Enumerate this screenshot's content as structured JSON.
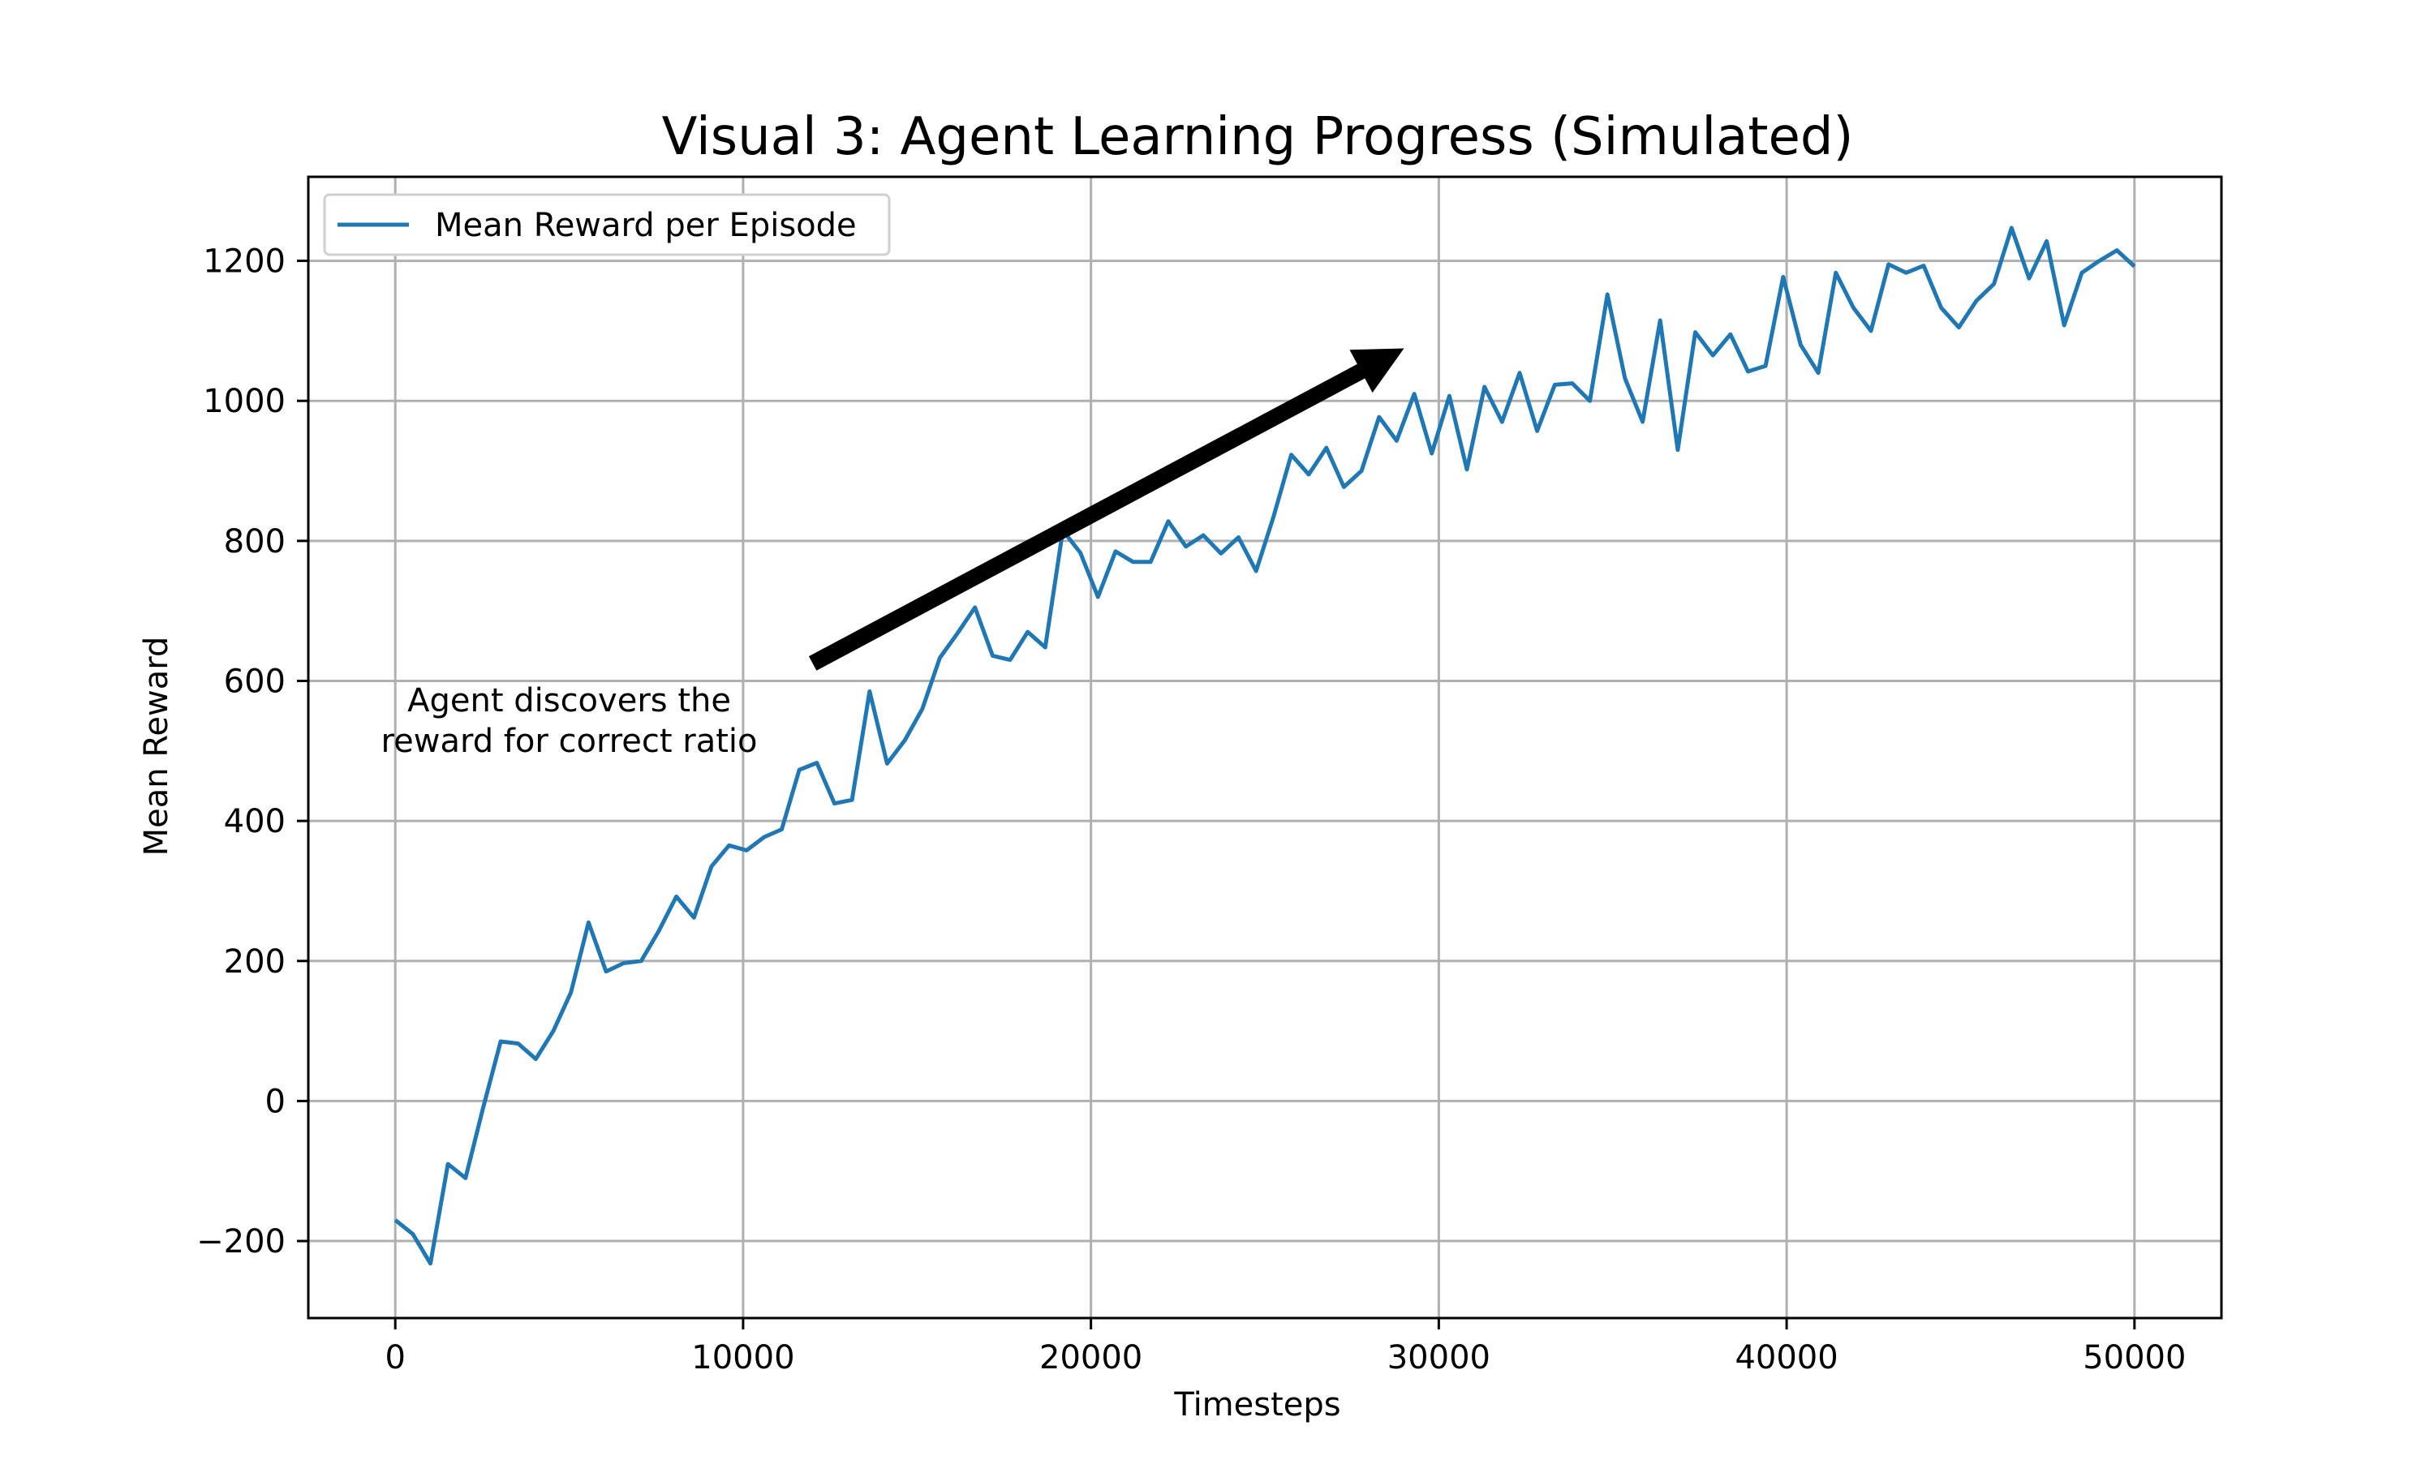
{
  "chart_data": {
    "type": "line",
    "title": "Visual 3: Agent Learning Progress (Simulated)",
    "xlabel": "Timesteps",
    "ylabel": "Mean Reward",
    "xlim": [
      -2500,
      52500
    ],
    "ylim": [
      -310,
      1320
    ],
    "xticks": [
      0,
      10000,
      20000,
      30000,
      40000,
      50000
    ],
    "yticks": [
      -200,
      0,
      200,
      400,
      600,
      800,
      1000,
      1200
    ],
    "grid": true,
    "legend_position": "top-left",
    "series": [
      {
        "name": "Mean Reward per Episode",
        "color": "#1f77b4",
        "x": [
          0,
          505,
          1010,
          1515,
          2020,
          2525,
          3030,
          3535,
          4040,
          4545,
          5051,
          5556,
          6061,
          6566,
          7071,
          7576,
          8081,
          8586,
          9091,
          9596,
          10101,
          10606,
          11111,
          11616,
          12121,
          12626,
          13131,
          13636,
          14141,
          14646,
          15152,
          15657,
          16162,
          16667,
          17172,
          17677,
          18182,
          18687,
          19192,
          19697,
          20202,
          20707,
          21212,
          21717,
          22222,
          22727,
          23232,
          23737,
          24242,
          24747,
          25253,
          25758,
          26263,
          26768,
          27273,
          27778,
          28283,
          28788,
          29293,
          29798,
          30303,
          30808,
          31313,
          31818,
          32323,
          32828,
          33333,
          33838,
          34343,
          34848,
          35354,
          35859,
          36364,
          36869,
          37374,
          37879,
          38384,
          38889,
          39394,
          39899,
          40404,
          40909,
          41414,
          41919,
          42424,
          42929,
          43434,
          43939,
          44444,
          44949,
          45455,
          45960,
          46465,
          46970,
          47475,
          47980,
          48485,
          48990,
          49495,
          50000
        ],
        "values": [
          -170,
          -190,
          -232,
          -90,
          -110,
          -10,
          85,
          82,
          60,
          100,
          155,
          255,
          185,
          197,
          200,
          243,
          292,
          262,
          335,
          365,
          358,
          377,
          388,
          473,
          483,
          425,
          430,
          585,
          482,
          515,
          560,
          633,
          668,
          705,
          636,
          630,
          670,
          648,
          815,
          783,
          720,
          785,
          770,
          770,
          828,
          792,
          808,
          782,
          805,
          757,
          835,
          923,
          895,
          933,
          877,
          900,
          977,
          943,
          1010,
          925,
          1007,
          902,
          1020,
          970,
          1040,
          957,
          1023,
          1025,
          1000,
          1152,
          1032,
          970,
          1115,
          930,
          1098,
          1065,
          1095,
          1042,
          1050,
          1177,
          1080,
          1040,
          1183,
          1133,
          1100,
          1195,
          1183,
          1193,
          1133,
          1105,
          1143,
          1167,
          1247,
          1175,
          1228,
          1108,
          1183,
          1200,
          1215,
          1192
        ]
      }
    ],
    "annotation": {
      "text_line1": "Agent discovers the",
      "text_line2": "reward for correct ratio",
      "text_anchor": [
        5000,
        545
      ],
      "arrow_tail": [
        12000,
        625
      ],
      "arrow_head": [
        29000,
        1075
      ]
    }
  }
}
